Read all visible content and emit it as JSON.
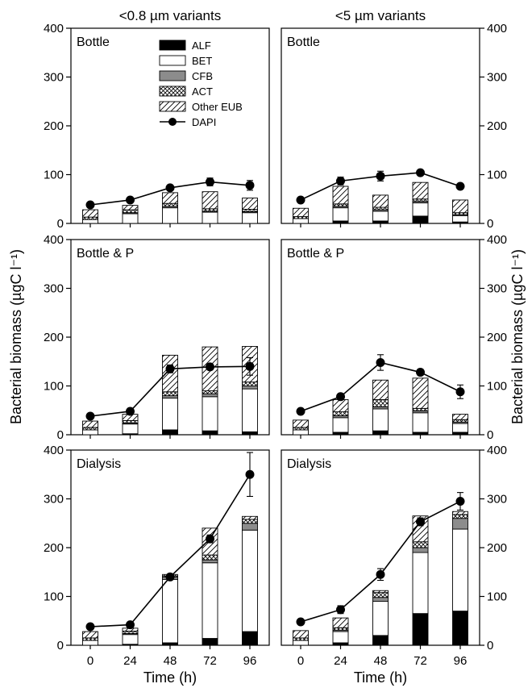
{
  "chart_data": {
    "type": "bar",
    "layout": "3x2 grid of panels",
    "column_titles": [
      "<0.8 µm variants",
      "<5 µm variants"
    ],
    "ylabel": "Bacterial biomass (µgC l⁻¹)",
    "xlabel": "Time (h)",
    "x": [
      0,
      24,
      48,
      72,
      96
    ],
    "x_tick_labels": [
      "0",
      "24",
      "48",
      "72",
      "96"
    ],
    "ylim": [
      0,
      400
    ],
    "y_ticks": [
      0,
      100,
      200,
      300,
      400
    ],
    "y_tick_labels": [
      "0",
      "100",
      "200",
      "300",
      "400"
    ],
    "grid": false,
    "legend_placement": "top-right of top-left panel",
    "legend": [
      {
        "key": "ALF",
        "label": "ALF",
        "style": "solid-black"
      },
      {
        "key": "BET",
        "label": "BET",
        "style": "white"
      },
      {
        "key": "CFB",
        "label": "CFB",
        "style": "grey"
      },
      {
        "key": "ACT",
        "label": "ACT",
        "style": "cross-hatch"
      },
      {
        "key": "EUB",
        "label": "Other EUB",
        "style": "diagonal-hatch"
      },
      {
        "key": "DAPI",
        "label": "DAPI",
        "style": "line-with-filled-circles"
      }
    ],
    "colors": {
      "ALF": "#000000",
      "BET": "#ffffff",
      "CFB": "#8c8c8c",
      "line": "#000000"
    },
    "panels": [
      {
        "id": "p08-bottle",
        "label": "Bottle",
        "column": 0,
        "row": 0,
        "stacks": {
          "ALF": [
            0,
            0,
            0,
            0,
            0
          ],
          "BET": [
            8,
            20,
            32,
            23,
            22
          ],
          "CFB": [
            0,
            2,
            3,
            2,
            2
          ],
          "ACT": [
            5,
            6,
            6,
            5,
            5
          ],
          "EUB": [
            15,
            9,
            22,
            35,
            23
          ]
        },
        "dapi": [
          38,
          48,
          73,
          85,
          78
        ],
        "dapi_err": [
          0,
          0,
          5,
          8,
          10
        ]
      },
      {
        "id": "p5-bottle",
        "label": "Bottle",
        "column": 1,
        "row": 0,
        "stacks": {
          "ALF": [
            0,
            5,
            5,
            15,
            3
          ],
          "BET": [
            10,
            27,
            20,
            27,
            13
          ],
          "CFB": [
            0,
            3,
            3,
            3,
            2
          ],
          "ACT": [
            4,
            5,
            5,
            5,
            4
          ],
          "EUB": [
            17,
            36,
            25,
            34,
            26
          ]
        },
        "dapi": [
          48,
          87,
          97,
          104,
          76
        ],
        "dapi_err": [
          0,
          8,
          10,
          4,
          4
        ]
      },
      {
        "id": "p08-bottlep",
        "label": "Bottle & P",
        "column": 0,
        "row": 1,
        "stacks": {
          "ALF": [
            0,
            2,
            10,
            8,
            6
          ],
          "BET": [
            10,
            20,
            65,
            70,
            88
          ],
          "CFB": [
            0,
            2,
            5,
            6,
            6
          ],
          "ACT": [
            5,
            5,
            8,
            6,
            8
          ],
          "EUB": [
            13,
            13,
            75,
            90,
            73
          ]
        },
        "dapi": [
          38,
          48,
          135,
          139,
          140
        ],
        "dapi_err": [
          0,
          0,
          8,
          6,
          18
        ]
      },
      {
        "id": "p5-bottlep",
        "label": "Bottle & P",
        "column": 1,
        "row": 1,
        "stacks": {
          "ALF": [
            0,
            5,
            8,
            5,
            5
          ],
          "BET": [
            10,
            30,
            45,
            40,
            18
          ],
          "CFB": [
            0,
            4,
            4,
            4,
            3
          ],
          "ACT": [
            5,
            8,
            15,
            5,
            5
          ],
          "EUB": [
            15,
            25,
            40,
            62,
            11
          ]
        },
        "dapi": [
          48,
          78,
          148,
          128,
          88
        ],
        "dapi_err": [
          0,
          0,
          16,
          6,
          14
        ]
      },
      {
        "id": "p08-dialysis",
        "label": "Dialysis",
        "column": 0,
        "row": 2,
        "stacks": {
          "ALF": [
            0,
            2,
            5,
            14,
            28
          ],
          "BET": [
            10,
            20,
            130,
            155,
            208
          ],
          "CFB": [
            0,
            2,
            5,
            6,
            14
          ],
          "ACT": [
            5,
            5,
            2,
            10,
            8
          ],
          "EUB": [
            13,
            6,
            3,
            55,
            6
          ]
        },
        "dapi": [
          38,
          42,
          140,
          218,
          350
        ],
        "dapi_err": [
          0,
          0,
          0,
          8,
          45
        ]
      },
      {
        "id": "p5-dialysis",
        "label": "Dialysis",
        "column": 1,
        "row": 2,
        "stacks": {
          "ALF": [
            0,
            5,
            20,
            65,
            70
          ],
          "BET": [
            10,
            23,
            70,
            125,
            168
          ],
          "CFB": [
            0,
            3,
            8,
            10,
            22
          ],
          "ACT": [
            5,
            5,
            10,
            12,
            8
          ],
          "EUB": [
            15,
            20,
            4,
            53,
            6
          ]
        },
        "dapi": [
          48,
          73,
          145,
          253,
          295
        ],
        "dapi_err": [
          0,
          8,
          12,
          8,
          18
        ]
      }
    ]
  }
}
